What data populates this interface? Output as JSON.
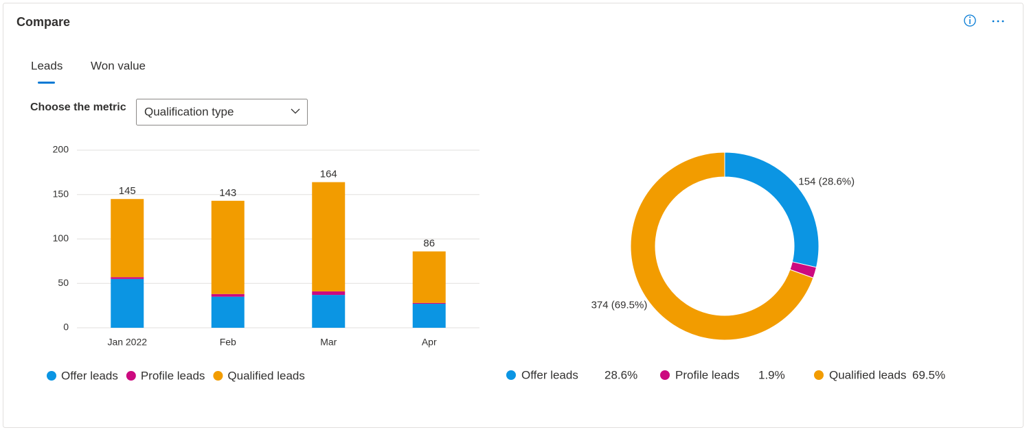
{
  "header": {
    "title": "Compare"
  },
  "tabs": [
    "Leads",
    "Won value"
  ],
  "filter": {
    "label": "Choose the metric",
    "value": "Qualification type"
  },
  "chart_data": [
    {
      "type": "bar",
      "stacked": true,
      "categories": [
        "Jan 2022",
        "Feb",
        "Mar",
        "Apr"
      ],
      "series": [
        {
          "name": "Offer leads",
          "color": "#0b95e3",
          "values": [
            55,
            35,
            37,
            27
          ]
        },
        {
          "name": "Profile leads",
          "color": "#cc0a7f",
          "values": [
            2,
            3,
            4,
            1
          ]
        },
        {
          "name": "Qualified leads",
          "color": "#f29c00",
          "values": [
            88,
            105,
            123,
            58
          ]
        }
      ],
      "totals": [
        145,
        143,
        164,
        86
      ],
      "ylim": [
        0,
        200
      ],
      "yticks": [
        0,
        50,
        100,
        150,
        200
      ],
      "grid": true
    },
    {
      "type": "donut",
      "categories": [
        "Offer leads",
        "Profile leads",
        "Qualified leads"
      ],
      "colors": [
        "#0b95e3",
        "#cc0a7f",
        "#f29c00"
      ],
      "values": [
        154,
        10,
        374
      ],
      "value_labels": [
        "154 (28.6%)",
        null,
        "374 (69.5%)"
      ],
      "legend_values": [
        {
          "value": 28.6,
          "label": "28.6%"
        },
        {
          "value": 1.9,
          "label": "1.9%"
        },
        {
          "value": 69.5,
          "label": "69.5%"
        }
      ]
    }
  ]
}
